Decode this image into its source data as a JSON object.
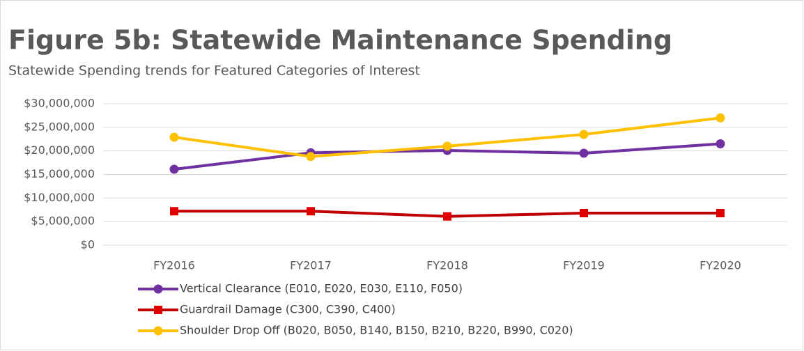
{
  "chart_data": {
    "type": "line",
    "title": "Figure 5b:  Statewide Maintenance Spending",
    "subtitle": "Statewide Spending trends for Featured Categories of Interest",
    "categories": [
      "FY2016",
      "FY2017",
      "FY2018",
      "FY2019",
      "FY2020"
    ],
    "series": [
      {
        "name": "Vertical Clearance (E010, E020, E030, E110, F050)",
        "color": "#7030a0",
        "marker": "circle",
        "values": [
          16100000,
          19600000,
          20100000,
          19500000,
          21500000
        ]
      },
      {
        "name": "Guardrail Damage (C300, C390, C400)",
        "color": "#c00000",
        "marker": "square",
        "values": [
          7200000,
          7200000,
          6100000,
          6800000,
          6800000
        ]
      },
      {
        "name": "Shoulder Drop Off (B020, B050, B140, B150, B210, B220, B990, C020)",
        "color": "#ffc000",
        "marker": "circle",
        "values": [
          22900000,
          18800000,
          21000000,
          23500000,
          27000000
        ]
      }
    ],
    "ylim": [
      0,
      30000000
    ],
    "yticks": [
      {
        "value": 0,
        "label": "$0"
      },
      {
        "value": 5000000,
        "label": "$5,000,000"
      },
      {
        "value": 10000000,
        "label": "$10,000,000"
      },
      {
        "value": 15000000,
        "label": "$15,000,000"
      },
      {
        "value": 20000000,
        "label": "$20,000,000"
      },
      {
        "value": 25000000,
        "label": "$25,000,000"
      },
      {
        "value": 30000000,
        "label": "$30,000,000"
      }
    ],
    "grid": true,
    "legend": "bottom"
  }
}
